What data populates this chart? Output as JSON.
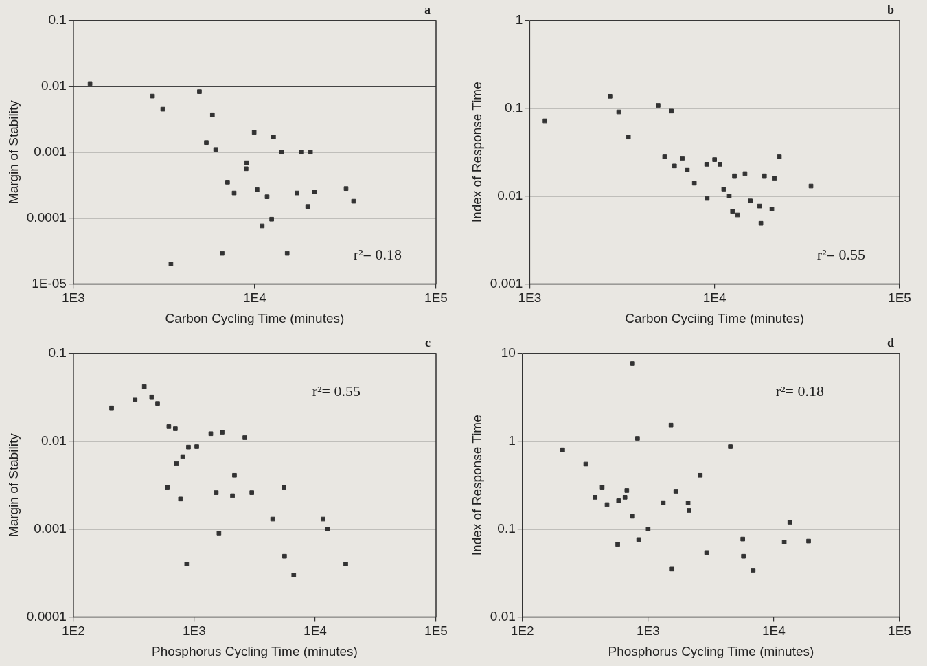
{
  "chart_data": [
    {
      "type": "scatter",
      "xlabel": "Carbon Cycling Time (minutes)",
      "ylabel": "Margin of Stability",
      "annotations": [
        "a",
        "r²= 0.18"
      ],
      "log": "xy",
      "grid": "y",
      "marker": "square",
      "xlim": [
        1000,
        100000
      ],
      "xticks": [
        {
          "value": 1000,
          "label": "1E3"
        },
        {
          "value": 10000,
          "label": "1E4"
        },
        {
          "value": 100000,
          "label": "1E5"
        }
      ],
      "ylim": [
        1e-05,
        0.1
      ],
      "yticks": [
        {
          "value": 1e-05,
          "label": "1E-05"
        },
        0.0001,
        0.001,
        0.01,
        0.1
      ],
      "series": [
        {
          "color": "#333333",
          "x": [
            1235,
            2730,
            3110,
            4955,
            5840,
            5410,
            6090,
            9930,
            12700,
            14100,
            18000,
            20300,
            9020,
            8960,
            7080,
            7700,
            10300,
            11700,
            17100,
            21300,
            19600,
            31900,
            35100,
            12400,
            11000,
            6610,
            15100,
            3450
          ],
          "values": [
            0.011,
            0.0071,
            0.0045,
            0.0083,
            0.0037,
            0.0014,
            0.0011,
            0.002,
            0.0017,
            0.001,
            0.001,
            0.001,
            0.00069,
            0.00056,
            0.00035,
            0.00024,
            0.00027,
            0.00021,
            0.00024,
            0.00025,
            0.00015,
            0.00028,
            0.00018,
            9.6e-05,
            7.6e-05,
            2.9e-05,
            2.9e-05,
            2e-05
          ]
        }
      ]
    },
    {
      "type": "scatter",
      "xlabel": "Carbon Cyciing Time (minutes)",
      "ylabel": "Index of Response Time",
      "annotations": [
        "b",
        "r²= 0.55"
      ],
      "log": "xy",
      "grid": "y",
      "marker": "square",
      "xlim": [
        1000,
        100000
      ],
      "xticks": [
        {
          "value": 1000,
          "label": "1E3"
        },
        {
          "value": 10000,
          "label": "1E4"
        },
        {
          "value": 100000,
          "label": "1E5"
        }
      ],
      "ylim": [
        0.001,
        1
      ],
      "yticks": [
        0.001,
        0.01,
        0.1,
        1
      ],
      "series": [
        {
          "color": "#333333",
          "x": [
            1210,
            2720,
            3030,
            3420,
            4950,
            5840,
            5370,
            6070,
            6700,
            7120,
            7770,
            9060,
            10000,
            10700,
            9120,
            11200,
            12000,
            12800,
            14600,
            12500,
            13300,
            15600,
            17500,
            17800,
            18600,
            20400,
            21100,
            22400,
            33200
          ],
          "values": [
            0.072,
            0.137,
            0.091,
            0.047,
            0.108,
            0.093,
            0.028,
            0.022,
            0.027,
            0.02,
            0.014,
            0.023,
            0.026,
            0.023,
            0.0094,
            0.012,
            0.01,
            0.017,
            0.018,
            0.0067,
            0.0061,
            0.0088,
            0.0077,
            0.0049,
            0.017,
            0.0071,
            0.016,
            0.028,
            0.013
          ]
        }
      ]
    },
    {
      "type": "scatter",
      "xlabel": "Phosphorus Cycling Time (minutes)",
      "ylabel": "Margin of Stability",
      "annotations": [
        "c",
        "r²= 0.55"
      ],
      "log": "xy",
      "grid": "y",
      "marker": "square",
      "xlim": [
        100,
        100000
      ],
      "xticks": [
        {
          "value": 100,
          "label": "1E2"
        },
        {
          "value": 1000,
          "label": "1E3"
        },
        {
          "value": 10000,
          "label": "1E4"
        },
        {
          "value": 100000,
          "label": "1E5"
        }
      ],
      "ylim": [
        0.0001,
        0.1
      ],
      "yticks": [
        0.0001,
        0.001,
        0.01,
        0.1
      ],
      "series": [
        {
          "color": "#333333",
          "x": [
            207,
            324,
            386,
            444,
            497,
            616,
            697,
            895,
            1048,
            802,
            710,
            598,
            769,
            1370,
            1700,
            2620,
            2150,
            1520,
            2070,
            2990,
            4450,
            5520,
            1600,
            865,
            5580,
            6650,
            11600,
            12600,
            17900
          ],
          "values": [
            0.024,
            0.03,
            0.042,
            0.032,
            0.027,
            0.0147,
            0.0139,
            0.0086,
            0.0087,
            0.0067,
            0.0056,
            0.003,
            0.0022,
            0.0122,
            0.0127,
            0.011,
            0.0041,
            0.0026,
            0.0024,
            0.0026,
            0.0013,
            0.003,
            0.0009,
            0.0004,
            0.00049,
            0.0003,
            0.0013,
            0.001,
            0.0004
          ]
        }
      ]
    },
    {
      "type": "scatter",
      "xlabel": "Phosphorus Cycling Time (minutes)",
      "ylabel": "Index of Response Time",
      "annotations": [
        "d",
        "r²= 0.18"
      ],
      "log": "xy",
      "grid": "y",
      "marker": "square",
      "xlim": [
        100,
        100000
      ],
      "xticks": [
        {
          "value": 100,
          "label": "1E2"
        },
        {
          "value": 1000,
          "label": "1E3"
        },
        {
          "value": 10000,
          "label": "1E4"
        },
        {
          "value": 100000,
          "label": "1E5"
        }
      ],
      "ylim": [
        0.01,
        10
      ],
      "yticks": [
        0.01,
        0.1,
        1,
        10
      ],
      "series": [
        {
          "color": "#333333",
          "x": [
            209,
            319,
            379,
            431,
            471,
            582,
            655,
            677,
            753,
            823,
            753,
            573,
            841,
            1000,
            1320,
            1520,
            1660,
            1550,
            2080,
            2120,
            2600,
            2920,
            4510,
            5660,
            5730,
            6850,
            12100,
            13400,
            18900
          ],
          "values": [
            0.8,
            0.55,
            0.23,
            0.3,
            0.19,
            0.21,
            0.23,
            0.275,
            7.7,
            1.08,
            0.14,
            0.067,
            0.076,
            0.1,
            0.2,
            1.53,
            0.27,
            0.035,
            0.198,
            0.163,
            0.41,
            0.054,
            0.87,
            0.077,
            0.049,
            0.034,
            0.071,
            0.12,
            0.073
          ]
        }
      ]
    }
  ]
}
